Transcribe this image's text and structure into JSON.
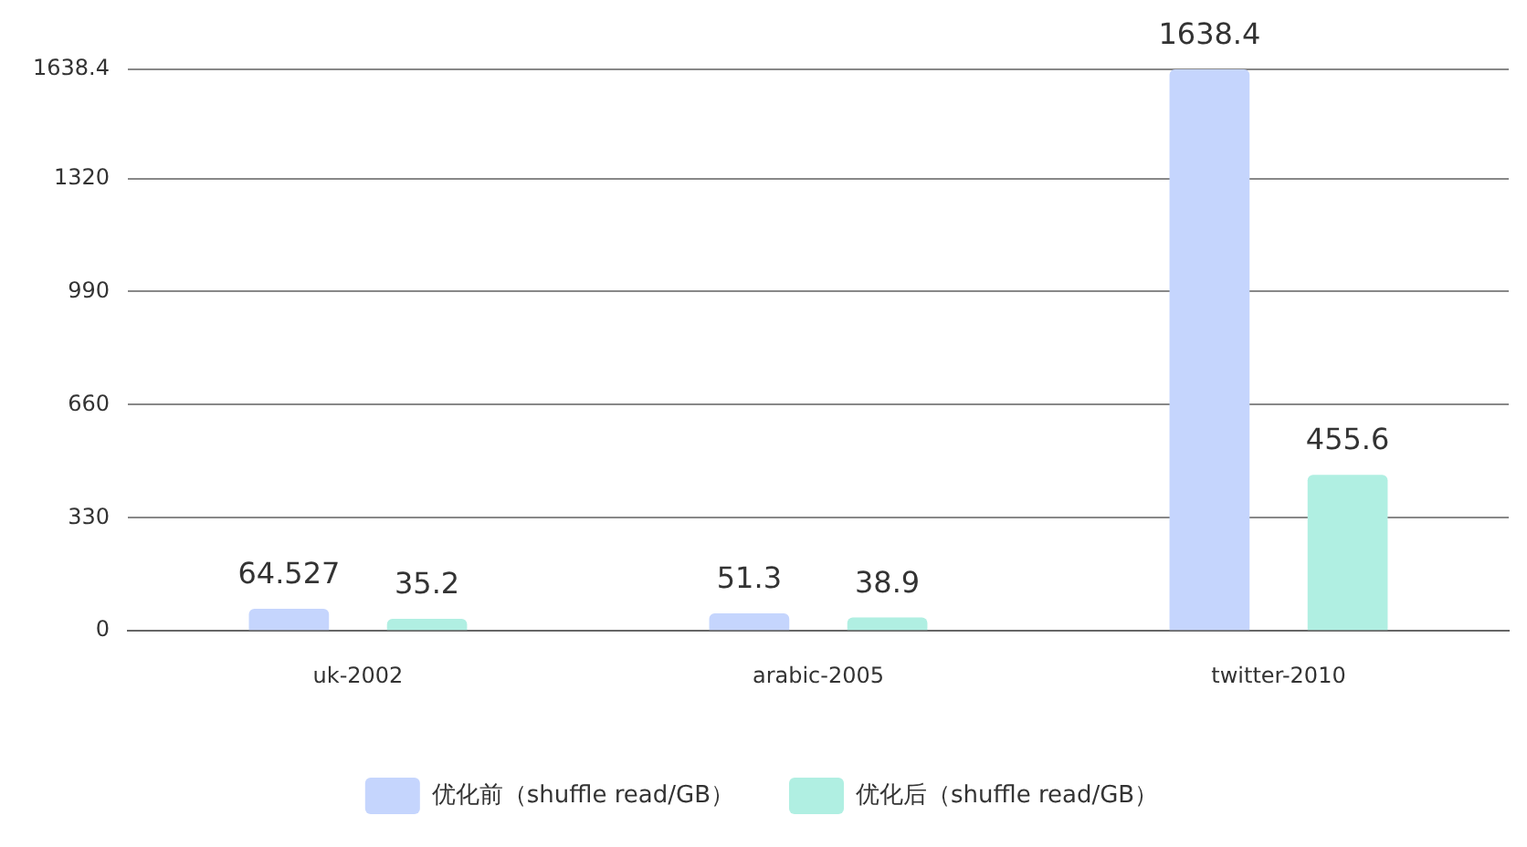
{
  "chart_data": {
    "type": "bar",
    "categories": [
      "uk-2002",
      "arabic-2005",
      "twitter-2010"
    ],
    "series": [
      {
        "name": "优化前（shuffle read/GB）",
        "color": "#c5d5fd",
        "values": [
          64.527,
          51.3,
          1638.4
        ]
      },
      {
        "name": "优化后（shuffle read/GB）",
        "color": "#b0efe2",
        "values": [
          35.2,
          38.9,
          455.6
        ]
      }
    ],
    "ylim": [
      0,
      1638.4
    ],
    "yticks": [
      0,
      330,
      660,
      990,
      1320,
      1638.4
    ],
    "grid": "y",
    "legend": "bottom",
    "data_labels": true
  }
}
